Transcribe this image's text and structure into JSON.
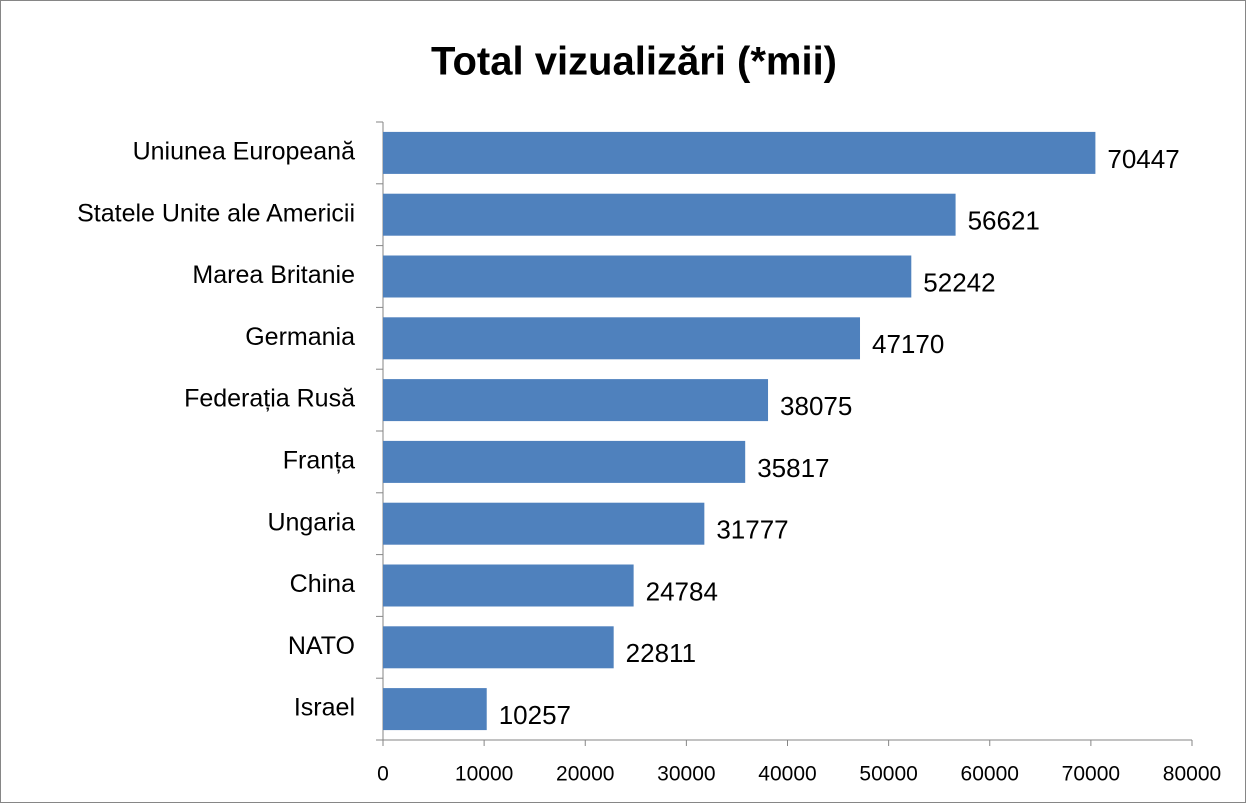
{
  "chart_data": {
    "type": "bar",
    "orientation": "horizontal",
    "title": "Total vizualizări (*mii)",
    "categories": [
      "Uniunea Europeană",
      "Statele Unite ale Americii",
      "Marea Britanie",
      "Germania",
      "Federația Rusă",
      "Franța",
      "Ungaria",
      "China",
      "NATO",
      "Israel"
    ],
    "values": [
      70447,
      56621,
      52242,
      47170,
      38075,
      35817,
      31777,
      24784,
      22811,
      10257
    ],
    "color": "#4f81bd",
    "xlim": [
      0,
      80000
    ],
    "xticks": [
      0,
      10000,
      20000,
      30000,
      40000,
      50000,
      60000,
      70000,
      80000
    ],
    "grid": false
  }
}
